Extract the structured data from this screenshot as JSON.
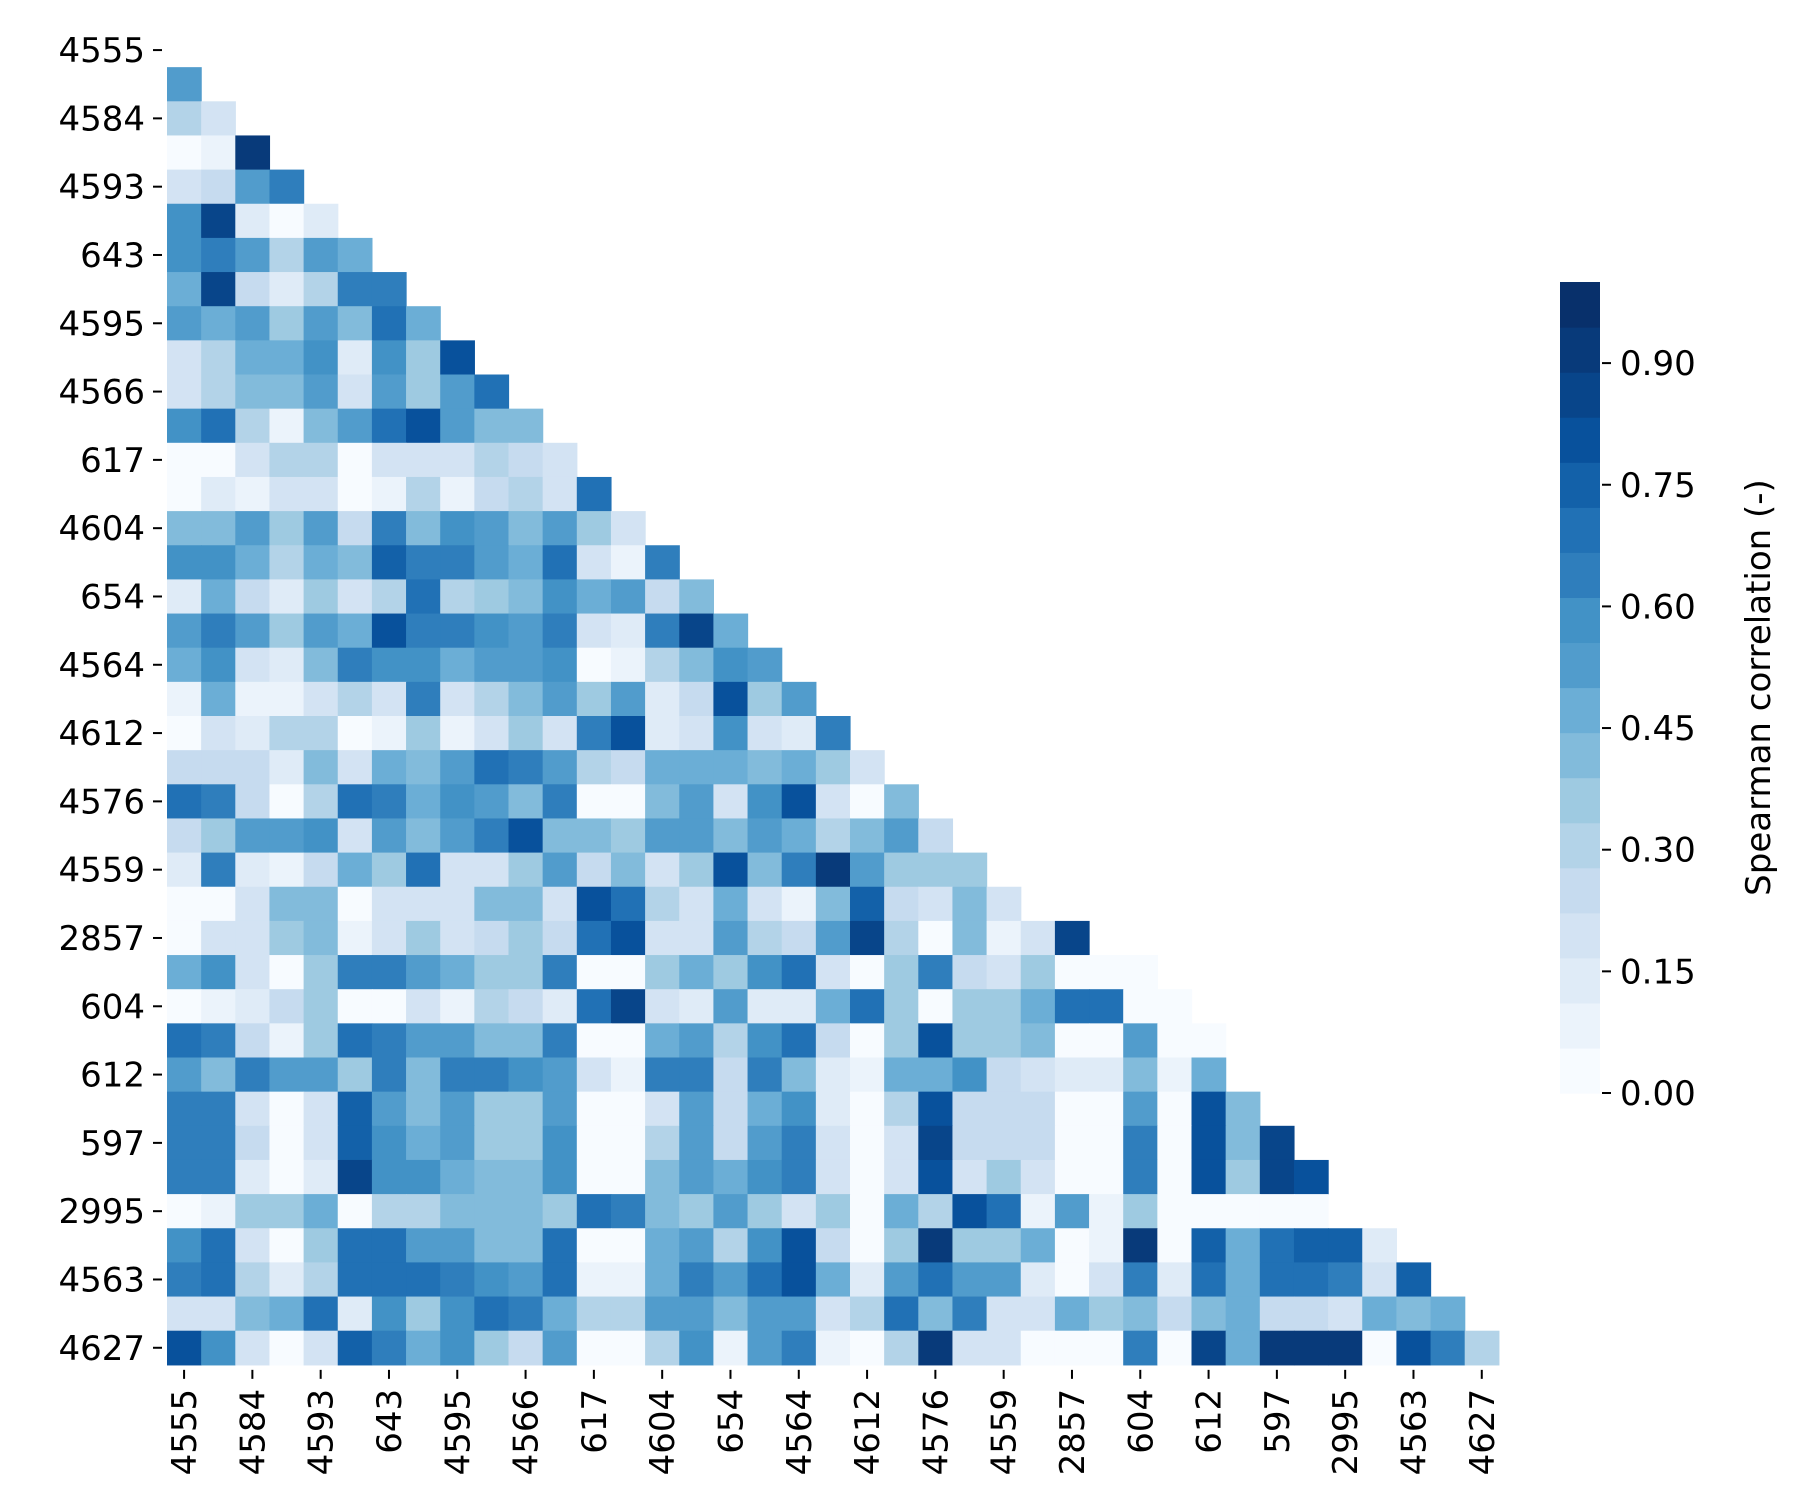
{
  "chart_data": {
    "type": "heatmap",
    "title": "",
    "xlabel": "",
    "ylabel": "",
    "tick_labels": [
      "4555",
      "4584",
      "4593",
      "643",
      "4595",
      "4566",
      "617",
      "4604",
      "654",
      "4564",
      "4612",
      "4576",
      "4559",
      "2857",
      "604",
      "612",
      "597",
      "2995",
      "4563",
      "4627"
    ],
    "mask": "lower-triangle (strict), 39 x 39 cells, tick label on every other row/column",
    "colorbar": {
      "label": "Spearman correlation (-)",
      "ticks": [
        0.0,
        0.15,
        0.3,
        0.45,
        0.6,
        0.75,
        0.9
      ],
      "tick_labels": [
        "0.00",
        "0.15",
        "0.30",
        "0.45",
        "0.60",
        "0.75",
        "0.90"
      ],
      "range": [
        0.0,
        1.0
      ],
      "colormap": "Blues",
      "colors": [
        "#f7fbff",
        "#ebf3fb",
        "#dfebf7",
        "#d3e3f3",
        "#c6dbef",
        "#b3d3e8",
        "#9ecae1",
        "#82bbdb",
        "#6baed6",
        "#519ccc",
        "#4292c6",
        "#2f7ebc",
        "#2171b5",
        "#1361a9",
        "#08519c",
        "#08458a",
        "#083a7a",
        "#08306b"
      ]
    },
    "rows": [
      [
        0.54
      ],
      [
        0.3,
        0.22
      ],
      [
        0.03,
        0.06,
        0.92
      ],
      [
        0.18,
        0.25,
        0.54,
        0.62
      ],
      [
        0.57,
        0.85,
        0.12,
        0.03,
        0.15
      ],
      [
        0.58,
        0.65,
        0.52,
        0.3,
        0.53,
        0.47
      ],
      [
        0.48,
        0.87,
        0.25,
        0.12,
        0.32,
        0.63,
        0.62
      ],
      [
        0.53,
        0.48,
        0.55,
        0.36,
        0.52,
        0.4,
        0.72,
        0.46
      ],
      [
        0.22,
        0.3,
        0.45,
        0.45,
        0.6,
        0.15,
        0.61,
        0.35,
        0.78
      ],
      [
        0.22,
        0.33,
        0.42,
        0.42,
        0.55,
        0.2,
        0.5,
        0.34,
        0.55,
        0.68
      ],
      [
        0.57,
        0.72,
        0.33,
        0.06,
        0.4,
        0.55,
        0.72,
        0.78,
        0.52,
        0.4,
        0.4
      ],
      [
        0.02,
        0.02,
        0.2,
        0.32,
        0.32,
        0.02,
        0.2,
        0.2,
        0.2,
        0.32,
        0.25,
        0.2
      ],
      [
        0.02,
        0.12,
        0.08,
        0.22,
        0.22,
        0.02,
        0.08,
        0.33,
        0.06,
        0.25,
        0.33,
        0.2,
        0.72
      ],
      [
        0.4,
        0.4,
        0.55,
        0.36,
        0.5,
        0.25,
        0.65,
        0.4,
        0.6,
        0.55,
        0.42,
        0.52,
        0.36,
        0.2
      ],
      [
        0.6,
        0.6,
        0.45,
        0.32,
        0.48,
        0.4,
        0.73,
        0.62,
        0.62,
        0.52,
        0.48,
        0.68,
        0.22,
        0.1,
        0.62
      ],
      [
        0.15,
        0.48,
        0.25,
        0.15,
        0.35,
        0.2,
        0.33,
        0.7,
        0.3,
        0.36,
        0.4,
        0.6,
        0.45,
        0.55,
        0.25,
        0.4
      ],
      [
        0.5,
        0.65,
        0.5,
        0.38,
        0.55,
        0.45,
        0.78,
        0.62,
        0.62,
        0.58,
        0.55,
        0.65,
        0.2,
        0.12,
        0.65,
        0.85,
        0.45
      ],
      [
        0.48,
        0.58,
        0.22,
        0.12,
        0.42,
        0.62,
        0.58,
        0.58,
        0.45,
        0.52,
        0.5,
        0.58,
        0.02,
        0.06,
        0.3,
        0.4,
        0.58,
        0.55
      ],
      [
        0.08,
        0.45,
        0.1,
        0.1,
        0.2,
        0.32,
        0.22,
        0.62,
        0.18,
        0.32,
        0.4,
        0.52,
        0.35,
        0.55,
        0.12,
        0.25,
        0.82,
        0.38,
        0.52
      ],
      [
        0.04,
        0.22,
        0.12,
        0.32,
        0.32,
        0.04,
        0.08,
        0.38,
        0.06,
        0.22,
        0.38,
        0.18,
        0.62,
        0.82,
        0.12,
        0.2,
        0.6,
        0.2,
        0.15,
        0.65
      ],
      [
        0.26,
        0.26,
        0.26,
        0.15,
        0.4,
        0.2,
        0.48,
        0.42,
        0.55,
        0.68,
        0.62,
        0.52,
        0.32,
        0.24,
        0.45,
        0.48,
        0.48,
        0.4,
        0.48,
        0.36,
        0.2
      ],
      [
        0.68,
        0.62,
        0.25,
        0.02,
        0.32,
        0.72,
        0.62,
        0.48,
        0.58,
        0.52,
        0.4,
        0.62,
        0.02,
        0.02,
        0.4,
        0.55,
        0.22,
        0.58,
        0.78,
        0.18,
        0.04,
        0.4
      ],
      [
        0.25,
        0.38,
        0.55,
        0.55,
        0.58,
        0.18,
        0.5,
        0.42,
        0.52,
        0.62,
        0.82,
        0.42,
        0.42,
        0.38,
        0.52,
        0.52,
        0.4,
        0.52,
        0.48,
        0.3,
        0.42,
        0.55,
        0.25
      ],
      [
        0.15,
        0.62,
        0.12,
        0.06,
        0.25,
        0.48,
        0.35,
        0.72,
        0.18,
        0.22,
        0.38,
        0.55,
        0.25,
        0.42,
        0.2,
        0.36,
        0.82,
        0.42,
        0.65,
        0.92,
        0.55,
        0.36,
        0.36,
        0.36
      ],
      [
        0.02,
        0.02,
        0.2,
        0.42,
        0.42,
        0.03,
        0.18,
        0.2,
        0.22,
        0.4,
        0.4,
        0.2,
        0.8,
        0.7,
        0.32,
        0.18,
        0.48,
        0.18,
        0.1,
        0.4,
        0.75,
        0.25,
        0.2,
        0.4,
        0.2
      ],
      [
        0.02,
        0.2,
        0.2,
        0.36,
        0.4,
        0.1,
        0.2,
        0.35,
        0.22,
        0.25,
        0.36,
        0.25,
        0.7,
        0.82,
        0.22,
        0.22,
        0.55,
        0.3,
        0.25,
        0.5,
        0.88,
        0.3,
        0.02,
        0.4,
        0.1,
        0.2,
        0.85
      ],
      [
        0.48,
        0.58,
        0.2,
        0.02,
        0.36,
        0.62,
        0.65,
        0.52,
        0.48,
        0.38,
        0.35,
        0.62,
        0.02,
        0.02,
        0.38,
        0.48,
        0.38,
        0.58,
        0.7,
        0.2,
        0.04,
        0.36,
        0.65,
        0.25,
        0.22,
        0.38,
        0.02,
        0.02,
        0.04
      ],
      [
        0.02,
        0.06,
        0.12,
        0.25,
        0.36,
        0.02,
        0.04,
        0.22,
        0.06,
        0.3,
        0.25,
        0.12,
        0.72,
        0.88,
        0.2,
        0.12,
        0.55,
        0.12,
        0.12,
        0.48,
        0.7,
        0.36,
        0.02,
        0.36,
        0.36,
        0.48,
        0.72,
        0.7,
        0.04,
        0.04
      ],
      [
        0.72,
        0.62,
        0.25,
        0.06,
        0.36,
        0.72,
        0.62,
        0.55,
        0.55,
        0.42,
        0.4,
        0.62,
        0.02,
        0.02,
        0.45,
        0.55,
        0.32,
        0.58,
        0.72,
        0.25,
        0.02,
        0.38,
        0.82,
        0.36,
        0.36,
        0.4,
        0.02,
        0.02,
        0.52,
        0.04,
        0.02
      ],
      [
        0.55,
        0.4,
        0.65,
        0.52,
        0.52,
        0.36,
        0.62,
        0.4,
        0.65,
        0.65,
        0.58,
        0.52,
        0.2,
        0.08,
        0.62,
        0.62,
        0.25,
        0.65,
        0.4,
        0.15,
        0.06,
        0.48,
        0.48,
        0.6,
        0.25,
        0.2,
        0.15,
        0.15,
        0.4,
        0.1,
        0.48
      ],
      [
        0.65,
        0.62,
        0.18,
        0.02,
        0.2,
        0.75,
        0.55,
        0.42,
        0.55,
        0.36,
        0.36,
        0.55,
        0.02,
        0.02,
        0.2,
        0.52,
        0.25,
        0.48,
        0.58,
        0.15,
        0.02,
        0.3,
        0.78,
        0.25,
        0.25,
        0.25,
        0.02,
        0.02,
        0.52,
        0.02,
        0.78,
        0.4
      ],
      [
        0.65,
        0.62,
        0.25,
        0.02,
        0.2,
        0.75,
        0.58,
        0.48,
        0.55,
        0.36,
        0.36,
        0.58,
        0.02,
        0.02,
        0.3,
        0.52,
        0.25,
        0.52,
        0.62,
        0.2,
        0.02,
        0.2,
        0.88,
        0.25,
        0.25,
        0.25,
        0.02,
        0.02,
        0.62,
        0.02,
        0.8,
        0.4,
        0.88
      ],
      [
        0.65,
        0.65,
        0.12,
        0.02,
        0.15,
        0.88,
        0.58,
        0.58,
        0.48,
        0.4,
        0.4,
        0.58,
        0.02,
        0.02,
        0.4,
        0.52,
        0.48,
        0.58,
        0.62,
        0.2,
        0.02,
        0.2,
        0.8,
        0.2,
        0.36,
        0.2,
        0.02,
        0.02,
        0.62,
        0.02,
        0.8,
        0.36,
        0.85,
        0.8
      ],
      [
        0.02,
        0.08,
        0.36,
        0.36,
        0.45,
        0.02,
        0.32,
        0.32,
        0.4,
        0.42,
        0.4,
        0.36,
        0.68,
        0.62,
        0.42,
        0.38,
        0.55,
        0.36,
        0.2,
        0.36,
        0.02,
        0.48,
        0.3,
        0.8,
        0.7,
        0.1,
        0.55,
        0.1,
        0.36,
        0.02,
        0.02,
        0.02,
        0.02,
        0.02
      ],
      [
        0.57,
        0.7,
        0.22,
        0.02,
        0.36,
        0.72,
        0.68,
        0.52,
        0.52,
        0.42,
        0.42,
        0.68,
        0.02,
        0.02,
        0.45,
        0.55,
        0.3,
        0.6,
        0.78,
        0.25,
        0.02,
        0.38,
        0.9,
        0.36,
        0.36,
        0.45,
        0.02,
        0.08,
        0.92,
        0.02,
        0.75,
        0.45,
        0.7,
        0.75,
        0.75,
        0.12
      ],
      [
        0.62,
        0.72,
        0.3,
        0.12,
        0.3,
        0.68,
        0.68,
        0.72,
        0.62,
        0.58,
        0.55,
        0.72,
        0.1,
        0.1,
        0.45,
        0.65,
        0.52,
        0.72,
        0.82,
        0.45,
        0.15,
        0.55,
        0.72,
        0.55,
        0.52,
        0.12,
        0.02,
        0.2,
        0.62,
        0.12,
        0.7,
        0.48,
        0.72,
        0.7,
        0.62,
        0.2,
        0.75
      ],
      [
        0.2,
        0.22,
        0.4,
        0.45,
        0.68,
        0.15,
        0.6,
        0.36,
        0.6,
        0.68,
        0.62,
        0.45,
        0.3,
        0.3,
        0.55,
        0.55,
        0.4,
        0.5,
        0.5,
        0.2,
        0.3,
        0.7,
        0.4,
        0.62,
        0.2,
        0.2,
        0.45,
        0.36,
        0.4,
        0.25,
        0.4,
        0.48,
        0.25,
        0.25,
        0.22,
        0.48,
        0.4,
        0.48
      ],
      [
        0.8,
        0.6,
        0.2,
        0.02,
        0.2,
        0.75,
        0.62,
        0.45,
        0.6,
        0.36,
        0.25,
        0.55,
        0.02,
        0.02,
        0.3,
        0.58,
        0.1,
        0.52,
        0.62,
        0.1,
        0.02,
        0.3,
        0.92,
        0.2,
        0.2,
        0.02,
        0.02,
        0.02,
        0.62,
        0.02,
        0.88,
        0.45,
        0.9,
        0.9,
        0.9,
        0.02,
        0.78,
        0.65,
        0.3
      ]
    ]
  }
}
